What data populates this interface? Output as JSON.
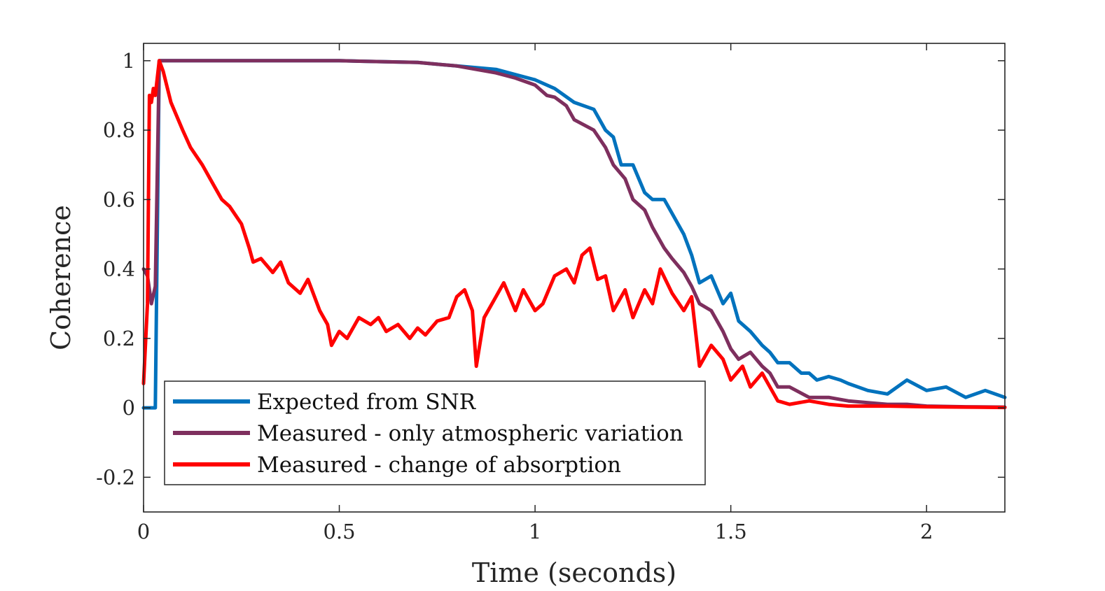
{
  "chart_data": {
    "type": "line",
    "title": "",
    "xlabel": "Time (seconds)",
    "ylabel": "Coherence",
    "xlim": [
      0,
      2.2
    ],
    "ylim": [
      -0.3,
      1.05
    ],
    "xticks": [
      0,
      0.5,
      1,
      1.5,
      2
    ],
    "xtick_labels": [
      "0",
      "0.5",
      "1",
      "1.5",
      "2"
    ],
    "yticks": [
      -0.2,
      0,
      0.2,
      0.4,
      0.6,
      0.8,
      1
    ],
    "ytick_labels": [
      "-0.2",
      "0",
      "0.2",
      "0.4",
      "0.6",
      "0.8",
      "1"
    ],
    "grid": false,
    "legend_position": "bottom-left",
    "series": [
      {
        "name": "Expected from SNR",
        "color": "#0072BD",
        "points": [
          [
            0,
            0
          ],
          [
            0.03,
            0
          ],
          [
            0.04,
            1
          ],
          [
            0.2,
            1
          ],
          [
            0.5,
            1
          ],
          [
            0.7,
            0.995
          ],
          [
            0.8,
            0.985
          ],
          [
            0.9,
            0.975
          ],
          [
            0.95,
            0.96
          ],
          [
            1.0,
            0.945
          ],
          [
            1.05,
            0.92
          ],
          [
            1.1,
            0.88
          ],
          [
            1.15,
            0.86
          ],
          [
            1.18,
            0.8
          ],
          [
            1.2,
            0.78
          ],
          [
            1.22,
            0.7
          ],
          [
            1.25,
            0.7
          ],
          [
            1.28,
            0.62
          ],
          [
            1.3,
            0.6
          ],
          [
            1.33,
            0.6
          ],
          [
            1.35,
            0.56
          ],
          [
            1.38,
            0.5
          ],
          [
            1.4,
            0.44
          ],
          [
            1.42,
            0.36
          ],
          [
            1.45,
            0.38
          ],
          [
            1.48,
            0.3
          ],
          [
            1.5,
            0.33
          ],
          [
            1.52,
            0.25
          ],
          [
            1.55,
            0.22
          ],
          [
            1.58,
            0.18
          ],
          [
            1.6,
            0.16
          ],
          [
            1.62,
            0.13
          ],
          [
            1.65,
            0.13
          ],
          [
            1.68,
            0.1
          ],
          [
            1.7,
            0.1
          ],
          [
            1.72,
            0.08
          ],
          [
            1.75,
            0.09
          ],
          [
            1.78,
            0.08
          ],
          [
            1.8,
            0.07
          ],
          [
            1.85,
            0.05
          ],
          [
            1.9,
            0.04
          ],
          [
            1.95,
            0.08
          ],
          [
            2.0,
            0.05
          ],
          [
            2.05,
            0.06
          ],
          [
            2.1,
            0.03
          ],
          [
            2.15,
            0.05
          ],
          [
            2.2,
            0.03
          ]
        ]
      },
      {
        "name": "Measured - only atmospheric variation",
        "color": "#7E2F5E",
        "points": [
          [
            0,
            0.4
          ],
          [
            0.01,
            0.38
          ],
          [
            0.02,
            0.3
          ],
          [
            0.03,
            0.35
          ],
          [
            0.04,
            1
          ],
          [
            0.2,
            1
          ],
          [
            0.5,
            1
          ],
          [
            0.7,
            0.995
          ],
          [
            0.8,
            0.985
          ],
          [
            0.9,
            0.965
          ],
          [
            0.95,
            0.95
          ],
          [
            1.0,
            0.93
          ],
          [
            1.03,
            0.9
          ],
          [
            1.05,
            0.895
          ],
          [
            1.08,
            0.87
          ],
          [
            1.1,
            0.83
          ],
          [
            1.15,
            0.8
          ],
          [
            1.18,
            0.75
          ],
          [
            1.2,
            0.7
          ],
          [
            1.23,
            0.66
          ],
          [
            1.25,
            0.6
          ],
          [
            1.28,
            0.57
          ],
          [
            1.3,
            0.52
          ],
          [
            1.33,
            0.46
          ],
          [
            1.35,
            0.43
          ],
          [
            1.38,
            0.39
          ],
          [
            1.4,
            0.35
          ],
          [
            1.42,
            0.3
          ],
          [
            1.45,
            0.28
          ],
          [
            1.48,
            0.22
          ],
          [
            1.5,
            0.17
          ],
          [
            1.52,
            0.14
          ],
          [
            1.55,
            0.16
          ],
          [
            1.58,
            0.12
          ],
          [
            1.6,
            0.1
          ],
          [
            1.62,
            0.06
          ],
          [
            1.65,
            0.06
          ],
          [
            1.7,
            0.03
          ],
          [
            1.75,
            0.03
          ],
          [
            1.8,
            0.02
          ],
          [
            1.85,
            0.015
          ],
          [
            1.9,
            0.01
          ],
          [
            1.95,
            0.01
          ],
          [
            2.0,
            0.005
          ],
          [
            2.1,
            0.003
          ],
          [
            2.2,
            0.002
          ]
        ]
      },
      {
        "name": "Measured - change of absorption",
        "color": "#FF0000",
        "points": [
          [
            0,
            0.07
          ],
          [
            0.01,
            0.3
          ],
          [
            0.015,
            0.9
          ],
          [
            0.02,
            0.88
          ],
          [
            0.025,
            0.92
          ],
          [
            0.03,
            0.9
          ],
          [
            0.04,
            1
          ],
          [
            0.05,
            0.97
          ],
          [
            0.07,
            0.88
          ],
          [
            0.1,
            0.8
          ],
          [
            0.12,
            0.75
          ],
          [
            0.15,
            0.7
          ],
          [
            0.18,
            0.64
          ],
          [
            0.2,
            0.6
          ],
          [
            0.22,
            0.58
          ],
          [
            0.25,
            0.53
          ],
          [
            0.27,
            0.46
          ],
          [
            0.28,
            0.42
          ],
          [
            0.3,
            0.43
          ],
          [
            0.33,
            0.39
          ],
          [
            0.35,
            0.42
          ],
          [
            0.37,
            0.36
          ],
          [
            0.4,
            0.33
          ],
          [
            0.42,
            0.37
          ],
          [
            0.45,
            0.28
          ],
          [
            0.47,
            0.24
          ],
          [
            0.48,
            0.18
          ],
          [
            0.5,
            0.22
          ],
          [
            0.52,
            0.2
          ],
          [
            0.55,
            0.26
          ],
          [
            0.58,
            0.24
          ],
          [
            0.6,
            0.26
          ],
          [
            0.62,
            0.22
          ],
          [
            0.65,
            0.24
          ],
          [
            0.68,
            0.2
          ],
          [
            0.7,
            0.23
          ],
          [
            0.72,
            0.21
          ],
          [
            0.75,
            0.25
          ],
          [
            0.78,
            0.26
          ],
          [
            0.8,
            0.32
          ],
          [
            0.82,
            0.34
          ],
          [
            0.84,
            0.28
          ],
          [
            0.85,
            0.12
          ],
          [
            0.87,
            0.26
          ],
          [
            0.9,
            0.32
          ],
          [
            0.92,
            0.36
          ],
          [
            0.95,
            0.28
          ],
          [
            0.97,
            0.34
          ],
          [
            1.0,
            0.28
          ],
          [
            1.02,
            0.3
          ],
          [
            1.05,
            0.38
          ],
          [
            1.08,
            0.4
          ],
          [
            1.1,
            0.36
          ],
          [
            1.12,
            0.44
          ],
          [
            1.14,
            0.46
          ],
          [
            1.16,
            0.37
          ],
          [
            1.18,
            0.38
          ],
          [
            1.2,
            0.28
          ],
          [
            1.23,
            0.34
          ],
          [
            1.25,
            0.26
          ],
          [
            1.28,
            0.34
          ],
          [
            1.3,
            0.3
          ],
          [
            1.32,
            0.4
          ],
          [
            1.35,
            0.33
          ],
          [
            1.38,
            0.28
          ],
          [
            1.4,
            0.32
          ],
          [
            1.42,
            0.12
          ],
          [
            1.45,
            0.18
          ],
          [
            1.48,
            0.14
          ],
          [
            1.5,
            0.08
          ],
          [
            1.53,
            0.12
          ],
          [
            1.55,
            0.06
          ],
          [
            1.58,
            0.1
          ],
          [
            1.6,
            0.06
          ],
          [
            1.62,
            0.02
          ],
          [
            1.65,
            0.01
          ],
          [
            1.7,
            0.02
          ],
          [
            1.75,
            0.01
          ],
          [
            1.8,
            0.005
          ],
          [
            1.9,
            0.005
          ],
          [
            2.0,
            0.003
          ],
          [
            2.1,
            0.002
          ],
          [
            2.2,
            0.001
          ]
        ]
      }
    ]
  }
}
